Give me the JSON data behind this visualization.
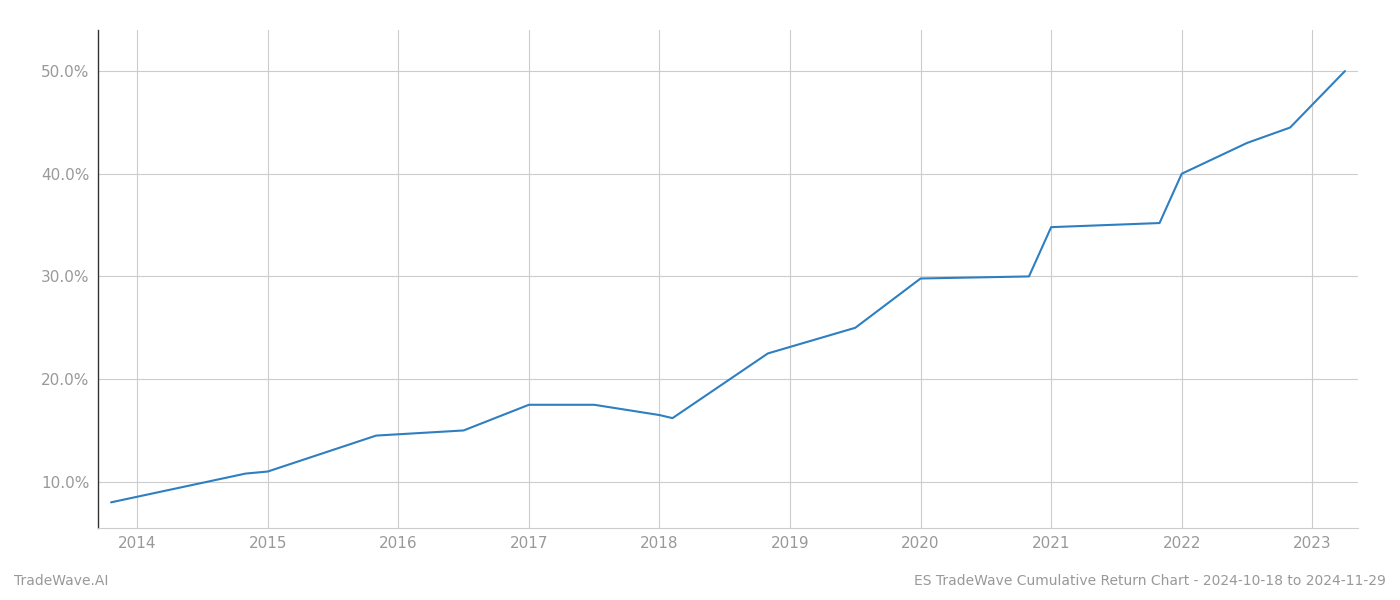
{
  "x_values": [
    2013.8,
    2014.83,
    2015.0,
    2015.83,
    2016.5,
    2017.0,
    2017.5,
    2018.0,
    2018.1,
    2018.83,
    2019.5,
    2020.0,
    2020.83,
    2021.0,
    2021.83,
    2022.0,
    2022.5,
    2022.83,
    2023.25
  ],
  "y_values": [
    8.0,
    10.8,
    11.0,
    14.5,
    15.0,
    17.5,
    17.5,
    16.5,
    16.2,
    22.5,
    25.0,
    29.8,
    30.0,
    34.8,
    35.2,
    40.0,
    43.0,
    44.5,
    50.0
  ],
  "line_color": "#2e7fc1",
  "line_width": 1.5,
  "background_color": "#ffffff",
  "grid_color": "#cccccc",
  "footer_left": "TradeWave.AI",
  "footer_right": "ES TradeWave Cumulative Return Chart - 2024-10-18 to 2024-11-29",
  "xlim": [
    2013.7,
    2023.35
  ],
  "ylim": [
    5.5,
    54.0
  ],
  "yticks": [
    10.0,
    20.0,
    30.0,
    40.0,
    50.0
  ],
  "ytick_labels": [
    "10.0%",
    "20.0%",
    "30.0%",
    "40.0%",
    "50.0%"
  ],
  "xticks": [
    2014,
    2015,
    2016,
    2017,
    2018,
    2019,
    2020,
    2021,
    2022,
    2023
  ],
  "xtick_labels": [
    "2014",
    "2015",
    "2016",
    "2017",
    "2018",
    "2019",
    "2020",
    "2021",
    "2022",
    "2023"
  ],
  "tick_label_color": "#999999",
  "footer_color": "#999999",
  "spine_color": "#cccccc",
  "left_spine_color": "#333333"
}
